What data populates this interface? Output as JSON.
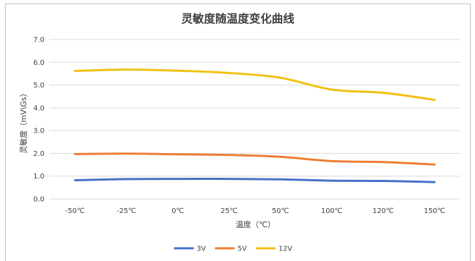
{
  "chart_data": {
    "type": "line",
    "title": "灵敏度随温度变化曲线",
    "xlabel": "温度（℃）",
    "ylabel": "灵敏度（mV\\Gs）",
    "categories": [
      "-50℃",
      "-25℃",
      "0℃",
      "25℃",
      "50℃",
      "100℃",
      "120℃",
      "150℃"
    ],
    "ylim": [
      0,
      7
    ],
    "yticks": [
      "0.0",
      "1.0",
      "2.0",
      "3.0",
      "4.0",
      "5.0",
      "6.0",
      "7.0"
    ],
    "grid": true,
    "legend_position": "bottom",
    "series": [
      {
        "name": "3V",
        "color": "#4472c4",
        "values": [
          0.82,
          0.87,
          0.88,
          0.88,
          0.86,
          0.8,
          0.79,
          0.74
        ]
      },
      {
        "name": "5V",
        "color": "#ed7d31",
        "values": [
          1.97,
          1.99,
          1.96,
          1.93,
          1.85,
          1.66,
          1.62,
          1.51
        ]
      },
      {
        "name": "12V",
        "color": "#f2c012",
        "values": [
          5.62,
          5.68,
          5.63,
          5.53,
          5.32,
          4.8,
          4.66,
          4.35
        ]
      }
    ]
  }
}
